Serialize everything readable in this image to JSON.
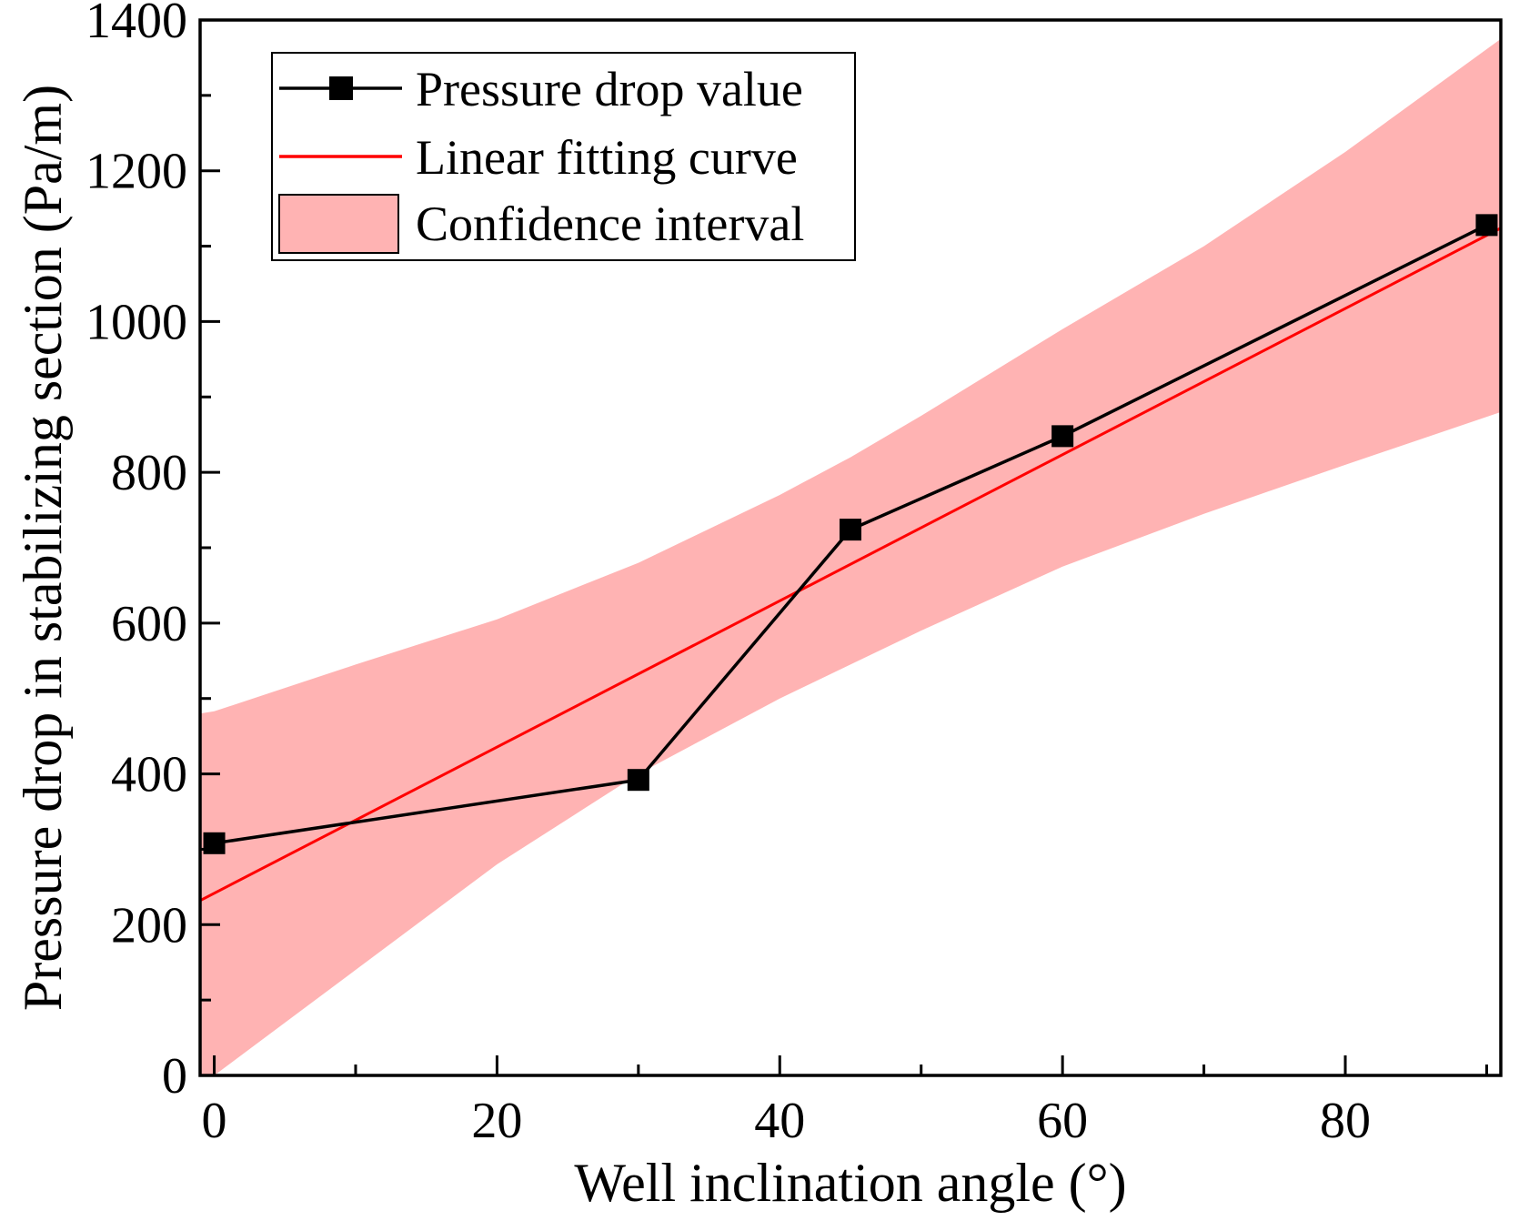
{
  "chart_data": {
    "type": "line",
    "xlabel": "Well inclination angle (°)",
    "ylabel": "Pressure drop in stabilizing section (Pa/m)",
    "xlim": [
      -1,
      91
    ],
    "ylim": [
      0,
      1400
    ],
    "xticks": [
      0,
      20,
      40,
      60,
      80
    ],
    "yticks": [
      0,
      200,
      400,
      600,
      800,
      1000,
      1200,
      1400
    ],
    "grid": false,
    "legend_position": "top-left",
    "series": [
      {
        "name": "Pressure drop value",
        "type": "line-marker",
        "color": "#000000",
        "x": [
          0,
          30,
          45,
          60,
          90
        ],
        "y": [
          308,
          392,
          724,
          848,
          1128
        ]
      },
      {
        "name": "Linear fitting curve",
        "type": "line",
        "color": "#ff0000",
        "x": [
          -1,
          91
        ],
        "y": [
          232,
          1124
        ]
      },
      {
        "name": "Confidence interval",
        "type": "band",
        "color": "#ffb3b3",
        "x": [
          -1,
          0,
          10,
          20,
          30,
          40,
          45,
          50,
          60,
          70,
          80,
          91
        ],
        "lower": [
          -12,
          0,
          140,
          280,
          400,
          500,
          545,
          590,
          675,
          745,
          810,
          880
        ],
        "upper": [
          480,
          483,
          545,
          605,
          680,
          770,
          820,
          875,
          990,
          1100,
          1225,
          1375
        ]
      }
    ]
  }
}
